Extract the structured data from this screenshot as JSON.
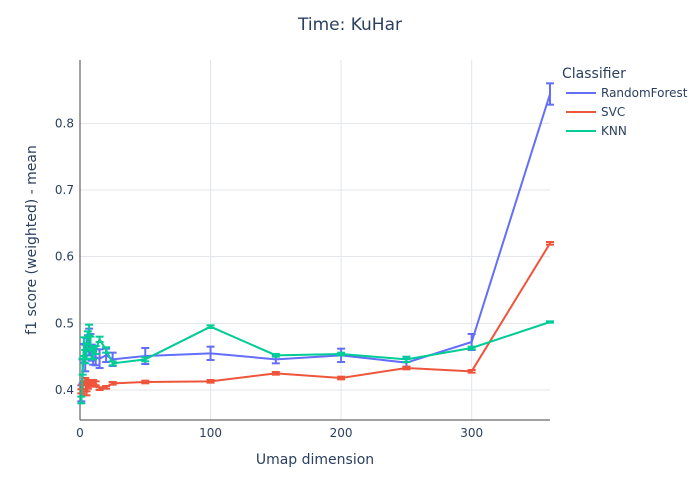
{
  "chart_data": {
    "type": "line",
    "title": "Time: KuHar",
    "xlabel": "Umap dimension",
    "ylabel": "f1 score (weighted) - mean",
    "xlim": [
      0,
      360
    ],
    "ylim": [
      0.355,
      0.895
    ],
    "x_ticks": [
      0,
      100,
      200,
      300
    ],
    "y_ticks": [
      0.4,
      0.5,
      0.6,
      0.7,
      0.8
    ],
    "grid": true,
    "legend": {
      "title": "Classifier",
      "position": "top-right"
    },
    "series": [
      {
        "name": "RandomForest",
        "color": "#636efa",
        "points": [
          {
            "x": 1,
            "y": 0.395,
            "err": 0.012
          },
          {
            "x": 2,
            "y": 0.428,
            "err": 0.018
          },
          {
            "x": 3,
            "y": 0.455,
            "err": 0.014
          },
          {
            "x": 4,
            "y": 0.448,
            "err": 0.02
          },
          {
            "x": 5,
            "y": 0.462,
            "err": 0.016
          },
          {
            "x": 6,
            "y": 0.47,
            "err": 0.012
          },
          {
            "x": 7,
            "y": 0.472,
            "err": 0.02
          },
          {
            "x": 8,
            "y": 0.468,
            "err": 0.016
          },
          {
            "x": 9,
            "y": 0.456,
            "err": 0.012
          },
          {
            "x": 10,
            "y": 0.448,
            "err": 0.01
          },
          {
            "x": 12,
            "y": 0.449,
            "err": 0.012
          },
          {
            "x": 15,
            "y": 0.447,
            "err": 0.014
          },
          {
            "x": 20,
            "y": 0.452,
            "err": 0.01
          },
          {
            "x": 25,
            "y": 0.446,
            "err": 0.01
          },
          {
            "x": 50,
            "y": 0.451,
            "err": 0.012
          },
          {
            "x": 100,
            "y": 0.455,
            "err": 0.01
          },
          {
            "x": 150,
            "y": 0.446,
            "err": 0.006
          },
          {
            "x": 200,
            "y": 0.452,
            "err": 0.01
          },
          {
            "x": 250,
            "y": 0.441,
            "err": 0.006
          },
          {
            "x": 300,
            "y": 0.472,
            "err": 0.012
          },
          {
            "x": 360,
            "y": 0.844,
            "err": 0.016
          }
        ]
      },
      {
        "name": "SVC",
        "color": "#ef553b",
        "points": [
          {
            "x": 1,
            "y": 0.398,
            "err": 0.003
          },
          {
            "x": 2,
            "y": 0.405,
            "err": 0.003
          },
          {
            "x": 3,
            "y": 0.41,
            "err": 0.003
          },
          {
            "x": 4,
            "y": 0.415,
            "err": 0.003
          },
          {
            "x": 5,
            "y": 0.395,
            "err": 0.003
          },
          {
            "x": 6,
            "y": 0.405,
            "err": 0.003
          },
          {
            "x": 7,
            "y": 0.412,
            "err": 0.003
          },
          {
            "x": 8,
            "y": 0.41,
            "err": 0.003
          },
          {
            "x": 9,
            "y": 0.408,
            "err": 0.003
          },
          {
            "x": 10,
            "y": 0.412,
            "err": 0.003
          },
          {
            "x": 12,
            "y": 0.41,
            "err": 0.003
          },
          {
            "x": 15,
            "y": 0.402,
            "err": 0.002
          },
          {
            "x": 20,
            "y": 0.404,
            "err": 0.002
          },
          {
            "x": 25,
            "y": 0.41,
            "err": 0.002
          },
          {
            "x": 50,
            "y": 0.412,
            "err": 0.002
          },
          {
            "x": 100,
            "y": 0.413,
            "err": 0.002
          },
          {
            "x": 150,
            "y": 0.425,
            "err": 0.002
          },
          {
            "x": 200,
            "y": 0.418,
            "err": 0.002
          },
          {
            "x": 250,
            "y": 0.433,
            "err": 0.002
          },
          {
            "x": 300,
            "y": 0.428,
            "err": 0.002
          },
          {
            "x": 360,
            "y": 0.62,
            "err": 0.002
          }
        ]
      },
      {
        "name": "KNN",
        "color": "#00cc96",
        "points": [
          {
            "x": 1,
            "y": 0.385,
            "err": 0.005
          },
          {
            "x": 2,
            "y": 0.435,
            "err": 0.012
          },
          {
            "x": 3,
            "y": 0.465,
            "err": 0.014
          },
          {
            "x": 4,
            "y": 0.45,
            "err": 0.01
          },
          {
            "x": 5,
            "y": 0.458,
            "err": 0.012
          },
          {
            "x": 6,
            "y": 0.478,
            "err": 0.01
          },
          {
            "x": 7,
            "y": 0.49,
            "err": 0.008
          },
          {
            "x": 8,
            "y": 0.47,
            "err": 0.01
          },
          {
            "x": 9,
            "y": 0.455,
            "err": 0.008
          },
          {
            "x": 10,
            "y": 0.452,
            "err": 0.006
          },
          {
            "x": 12,
            "y": 0.46,
            "err": 0.006
          },
          {
            "x": 15,
            "y": 0.476,
            "err": 0.004
          },
          {
            "x": 20,
            "y": 0.46,
            "err": 0.004
          },
          {
            "x": 25,
            "y": 0.44,
            "err": 0.003
          },
          {
            "x": 50,
            "y": 0.446,
            "err": 0.003
          },
          {
            "x": 100,
            "y": 0.495,
            "err": 0.002
          },
          {
            "x": 150,
            "y": 0.452,
            "err": 0.002
          },
          {
            "x": 200,
            "y": 0.454,
            "err": 0.002
          },
          {
            "x": 250,
            "y": 0.446,
            "err": 0.004
          },
          {
            "x": 300,
            "y": 0.463,
            "err": 0.002
          },
          {
            "x": 360,
            "y": 0.502,
            "err": 0.001
          }
        ]
      }
    ]
  }
}
